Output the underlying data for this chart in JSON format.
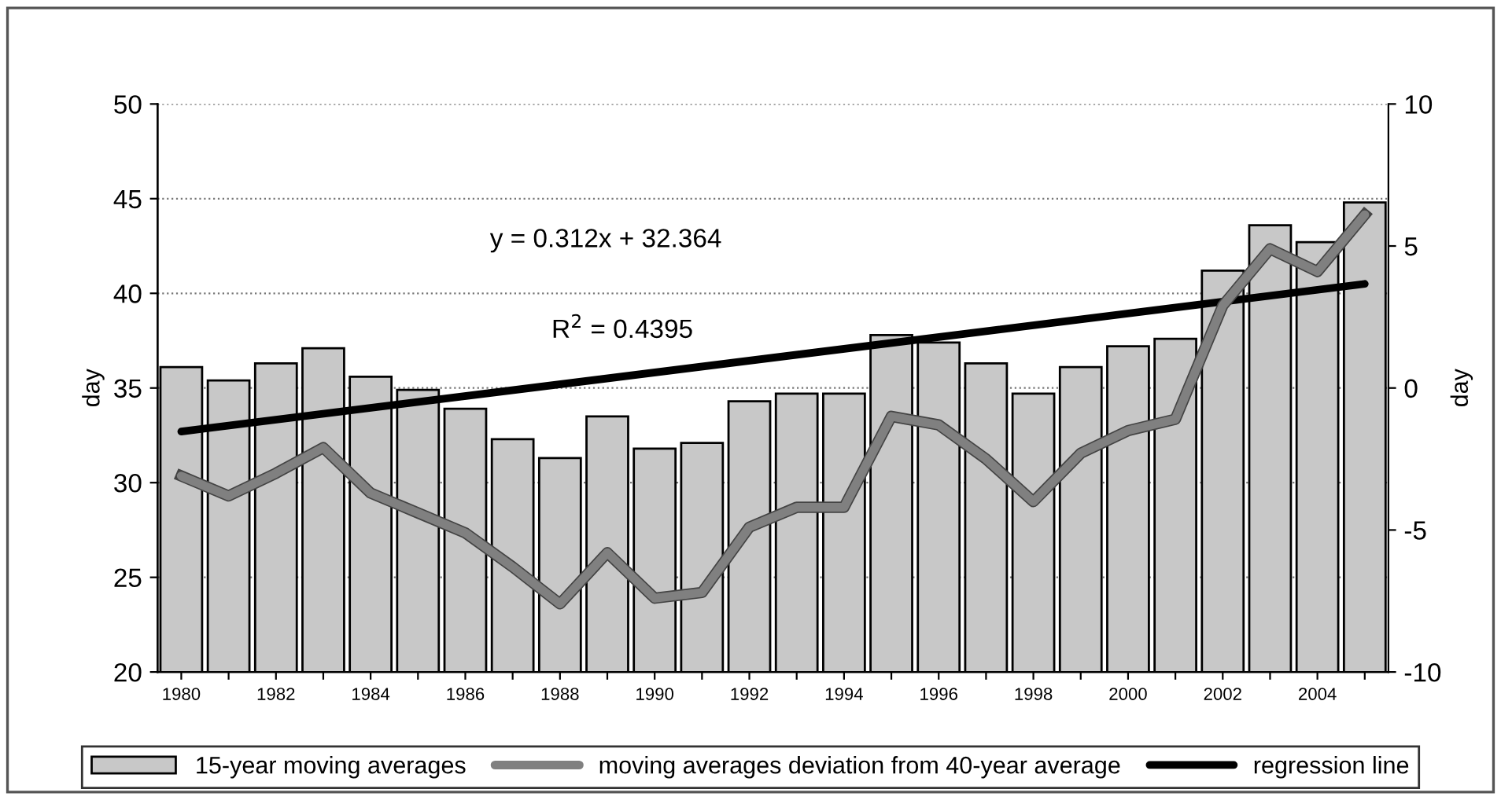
{
  "chart_data": {
    "type": "bar",
    "categories": [
      "1980",
      null,
      "1982",
      null,
      "1984",
      null,
      "1986",
      null,
      "1988",
      null,
      "1990",
      null,
      "1992",
      null,
      "1994",
      null,
      "1996",
      null,
      "1998",
      null,
      "2000",
      null,
      "2002",
      null,
      "2004",
      null
    ],
    "series": [
      {
        "name": "15-year moving averages",
        "color": "#c8c8c8",
        "values": [
          36.1,
          35.4,
          36.3,
          37.1,
          35.6,
          34.9,
          33.9,
          32.3,
          31.3,
          33.5,
          31.8,
          32.1,
          34.3,
          34.7,
          34.7,
          37.8,
          37.4,
          36.3,
          34.7,
          36.1,
          37.2,
          37.6,
          41.2,
          43.6,
          42.7,
          44.8
        ]
      },
      {
        "name": "moving averages deviation from 40-year average",
        "type": "line",
        "axis": "y2",
        "color": "#808080",
        "values": [
          -3.1,
          -3.8,
          -3.0,
          -2.1,
          -3.7,
          -4.4,
          -5.1,
          -6.3,
          -7.6,
          -5.8,
          -7.4,
          -7.2,
          -4.9,
          -4.2,
          -4.2,
          -1.0,
          -1.3,
          -2.5,
          -4.0,
          -2.3,
          -1.5,
          -1.1,
          2.9,
          4.9,
          4.1,
          6.1
        ]
      },
      {
        "name": "regression line",
        "type": "line",
        "color": "#000000",
        "values": [
          32.7,
          null,
          null,
          null,
          null,
          null,
          null,
          null,
          null,
          null,
          null,
          null,
          null,
          null,
          null,
          null,
          null,
          null,
          null,
          null,
          null,
          null,
          null,
          null,
          null,
          40.5
        ]
      }
    ],
    "ylabel": "day",
    "y2label": "day",
    "ylim": [
      20,
      50
    ],
    "yticks": [
      20,
      25,
      30,
      35,
      40,
      45,
      50
    ],
    "y2lim": [
      -10,
      10
    ],
    "y2ticks": [
      -10,
      -5,
      0,
      5,
      10
    ],
    "grid": "y",
    "legend": "bottom",
    "annotations": [
      "y = 0.312x + 32.364",
      "R$^{2}$ = 0.4395"
    ]
  }
}
